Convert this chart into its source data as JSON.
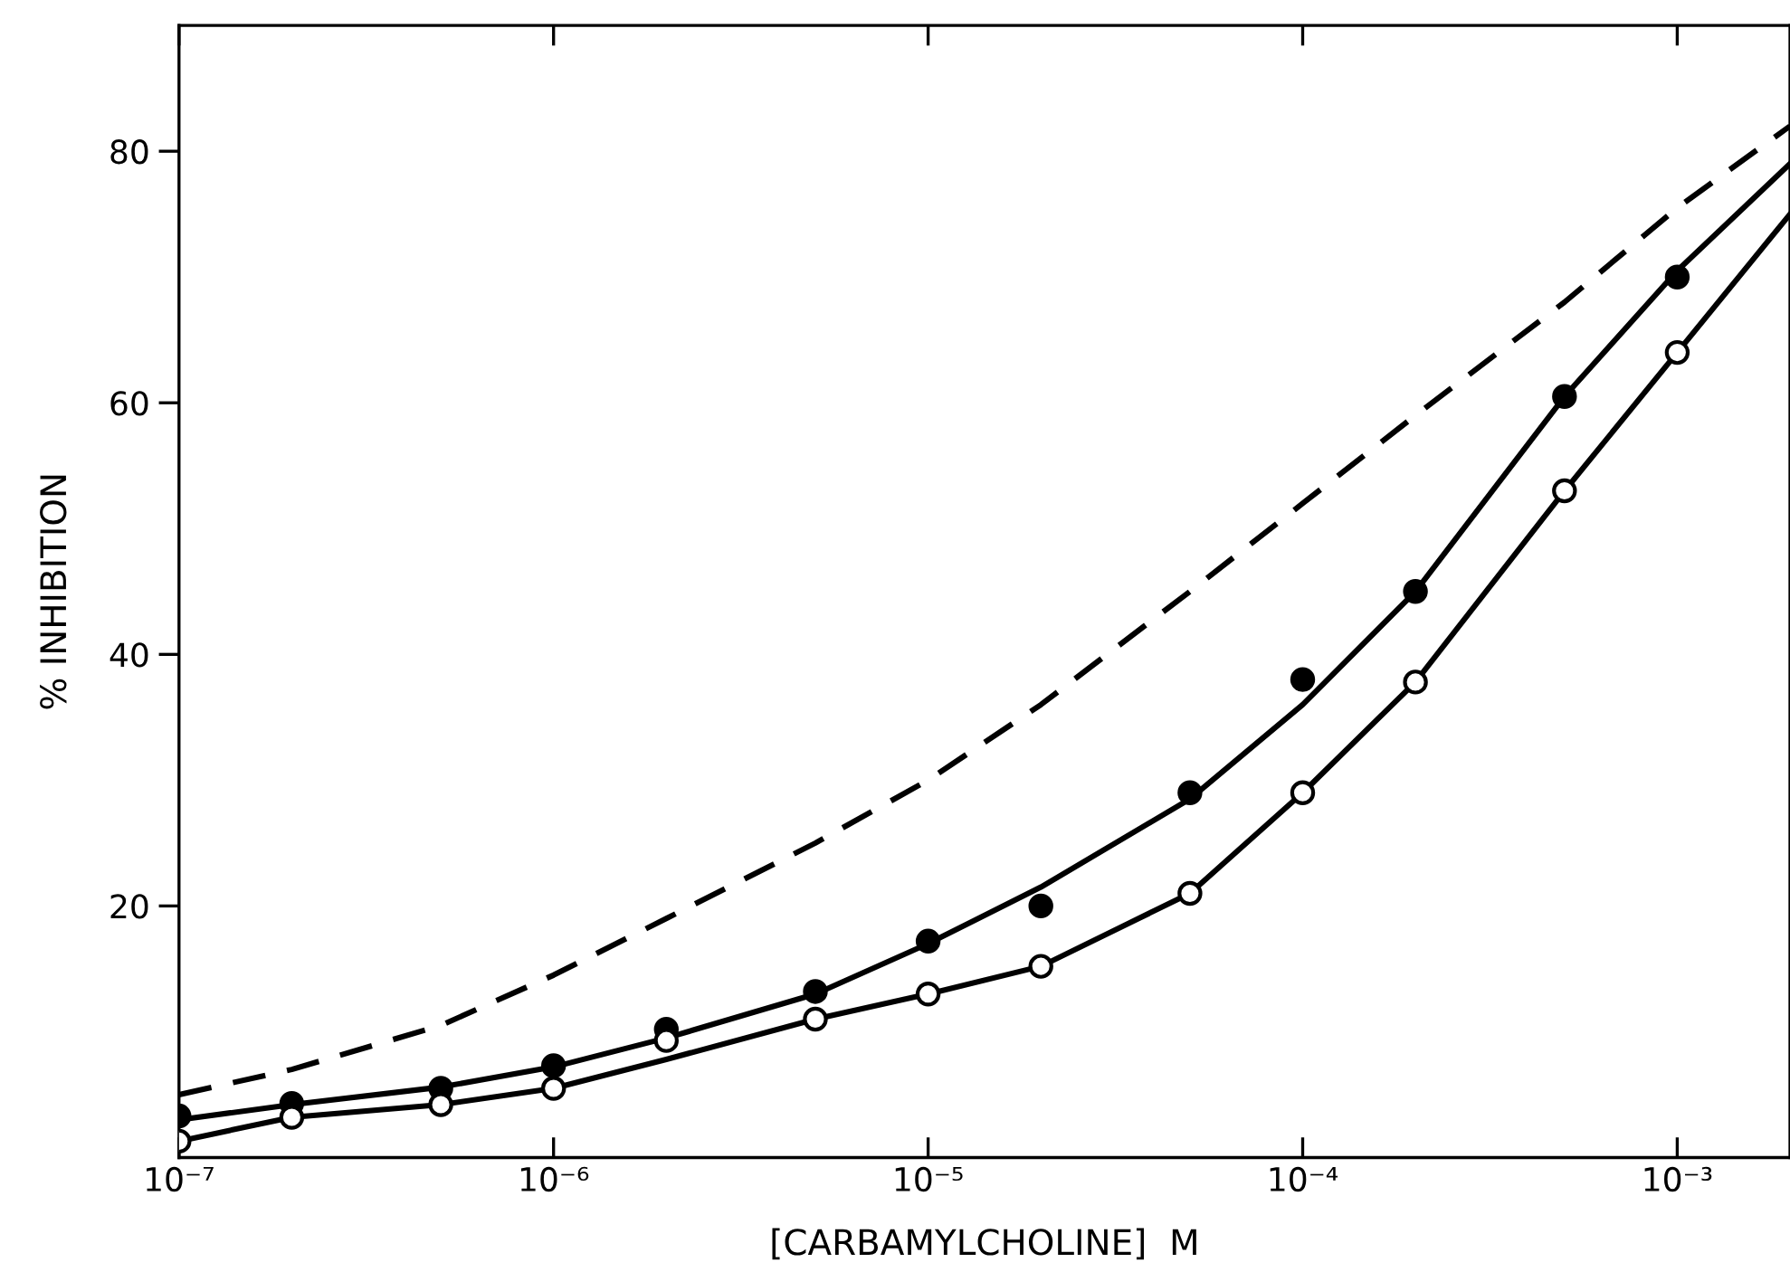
{
  "chart_data": {
    "type": "scatter",
    "xlabel": "[CARBAMYLCHOLINE]  M",
    "ylabel": "% INHIBITION",
    "log": "x",
    "xlim": [
      1e-07,
      0.002
    ],
    "ylim": [
      0,
      90
    ],
    "xticks": [
      {
        "value": 1e-07,
        "label": "10⁻⁷"
      },
      {
        "value": 1e-06,
        "label": "10⁻⁶"
      },
      {
        "value": 1e-05,
        "label": "10⁻⁵"
      },
      {
        "value": 0.0001,
        "label": "10⁻⁴"
      },
      {
        "value": 0.001,
        "label": "10⁻³"
      }
    ],
    "yticks": [
      20,
      40,
      60,
      80
    ],
    "grid": false,
    "legend": false,
    "series": [
      {
        "type": "line",
        "color": "#000000",
        "line_style": "dashed",
        "marker": "none",
        "x": [
          1e-07,
          2e-07,
          5e-07,
          1e-06,
          2e-06,
          5e-06,
          1e-05,
          2e-05,
          5e-05,
          0.0001,
          0.0002,
          0.0005,
          0.001,
          0.002
        ],
        "values": [
          5,
          7,
          10.5,
          14.5,
          19,
          25,
          30,
          36,
          45,
          52,
          59,
          68,
          75.5,
          82
        ]
      },
      {
        "type": "line",
        "color": "#000000",
        "line_style": "solid",
        "marker": "none",
        "x": [
          1e-07,
          2e-07,
          5e-07,
          1e-06,
          2e-06,
          5e-06,
          1e-05,
          2e-05,
          5e-05,
          0.0001,
          0.0002,
          0.0005,
          0.001,
          0.002
        ],
        "values": [
          3,
          4.2,
          5.6,
          7.2,
          9.5,
          13,
          17,
          21.5,
          28.5,
          36,
          45,
          60.5,
          70.5,
          79
        ]
      },
      {
        "type": "line",
        "color": "#000000",
        "line_style": "solid",
        "marker": "none",
        "x": [
          1e-07,
          2e-07,
          5e-07,
          1e-06,
          2e-06,
          5e-06,
          1e-05,
          2e-05,
          5e-05,
          0.0001,
          0.0002,
          0.0005,
          0.001,
          0.002
        ],
        "values": [
          1.3,
          3.2,
          4.2,
          5.5,
          7.8,
          11,
          13,
          15.2,
          21,
          29,
          37.8,
          53,
          64,
          75
        ]
      },
      {
        "color": "#000000",
        "marker": "circle",
        "x": [
          1e-07,
          2e-07,
          5e-07,
          1e-06,
          2e-06,
          5e-06,
          1e-05,
          2e-05,
          5e-05,
          0.0001,
          0.0002,
          0.0005,
          0.001
        ],
        "values": [
          3.3,
          4.3,
          5.5,
          7.3,
          10.2,
          13.2,
          17.2,
          20,
          29,
          38,
          45,
          60.5,
          70
        ]
      },
      {
        "color": "#ffffff",
        "marker": "circle",
        "x": [
          1e-07,
          2e-07,
          5e-07,
          1e-06,
          2e-06,
          5e-06,
          1e-05,
          2e-05,
          5e-05,
          0.0001,
          0.0002,
          0.0005,
          0.001
        ],
        "values": [
          1.3,
          3.2,
          4.2,
          5.5,
          9.3,
          11,
          13,
          15.2,
          21,
          29,
          37.8,
          53,
          64
        ]
      }
    ]
  }
}
